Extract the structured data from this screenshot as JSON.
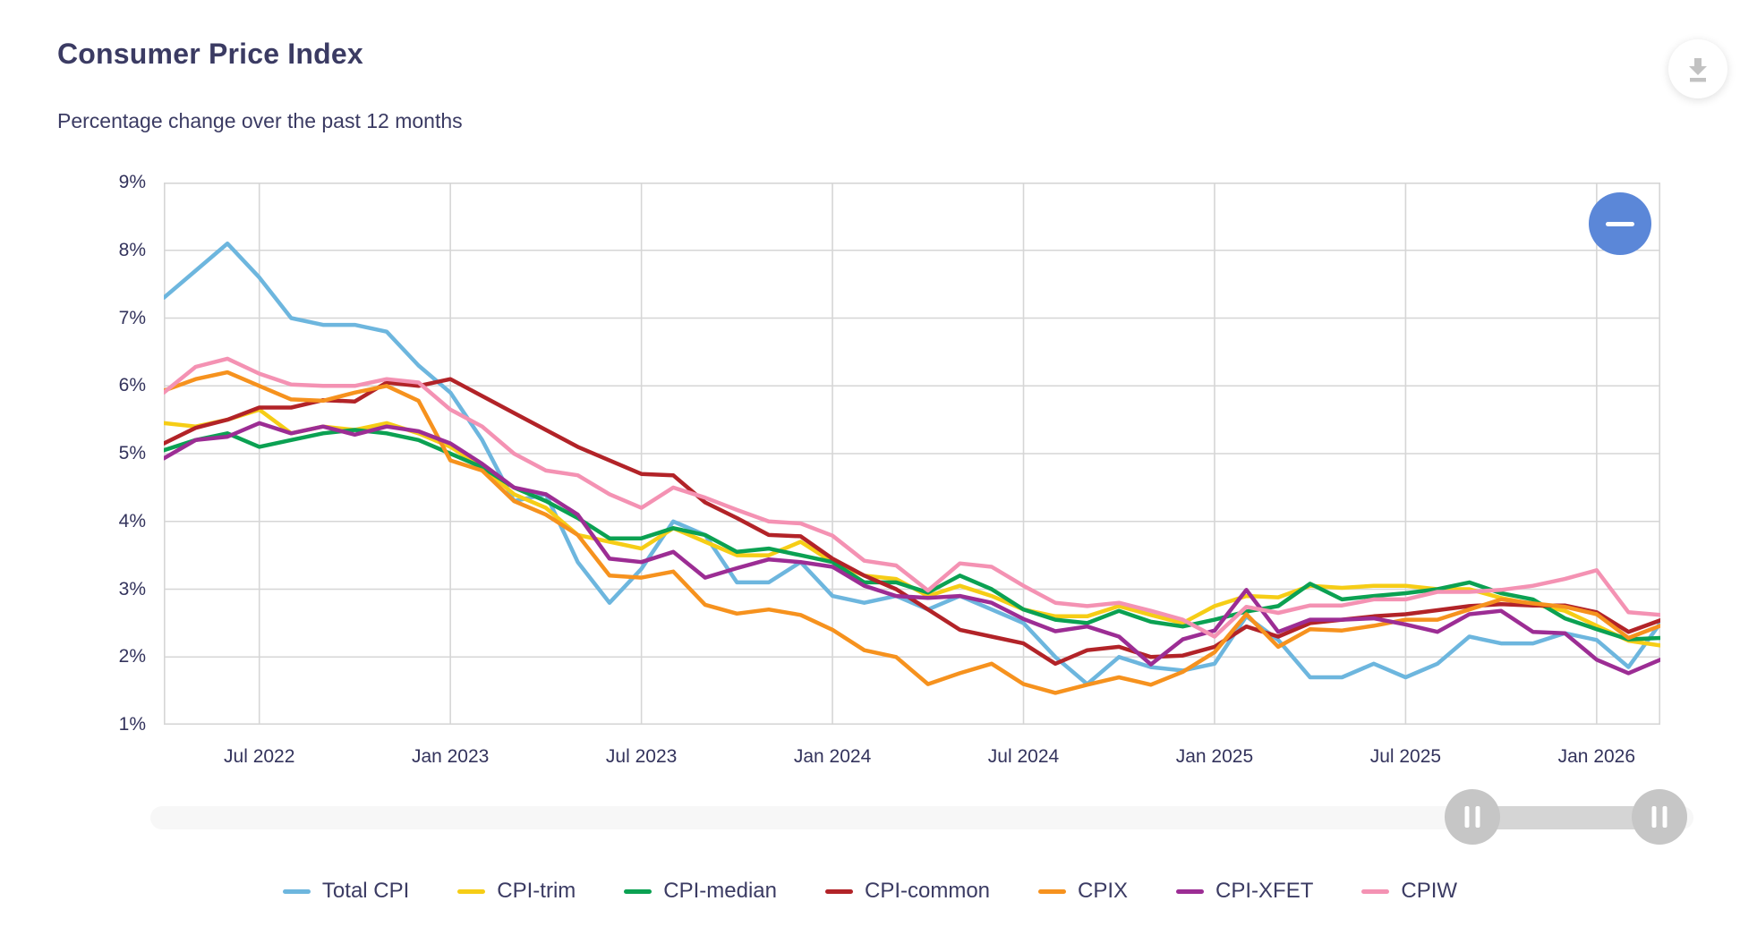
{
  "header": {
    "title": "Consumer Price Index",
    "subtitle": "Percentage change over the past 12 months"
  },
  "toolbar": {
    "download_icon": "download-icon",
    "download_icon_color": "#c2c2c2"
  },
  "controls": {
    "zoom_out_button": {
      "icon": "minus-icon",
      "color": "#5b87d8"
    },
    "range_slider": {
      "left_handle_position": 0.857,
      "right_handle_position": 0.978
    }
  },
  "chart_data": {
    "type": "line",
    "grid": true,
    "legend_position": "bottom",
    "ylim": [
      1,
      9
    ],
    "y_ticks": [
      {
        "label": "9%",
        "value": 9
      },
      {
        "label": "8%",
        "value": 8
      },
      {
        "label": "7%",
        "value": 7
      },
      {
        "label": "6%",
        "value": 6
      },
      {
        "label": "5%",
        "value": 5
      },
      {
        "label": "4%",
        "value": 4
      },
      {
        "label": "3%",
        "value": 3
      },
      {
        "label": "2%",
        "value": 2
      },
      {
        "label": "1%",
        "value": 1
      }
    ],
    "x": [
      "2022-04",
      "2022-05",
      "2022-06",
      "2022-07",
      "2022-08",
      "2022-09",
      "2022-10",
      "2022-11",
      "2022-12",
      "2023-01",
      "2023-02",
      "2023-03",
      "2023-04",
      "2023-05",
      "2023-06",
      "2023-07",
      "2023-08",
      "2023-09",
      "2023-10",
      "2023-11",
      "2023-12",
      "2024-01",
      "2024-02",
      "2024-03",
      "2024-04",
      "2024-05",
      "2024-06",
      "2024-07",
      "2024-08",
      "2024-09",
      "2024-10",
      "2024-11",
      "2024-12",
      "2025-01",
      "2025-02",
      "2025-03",
      "2025-04",
      "2025-05",
      "2025-06",
      "2025-07",
      "2025-08",
      "2025-09",
      "2025-10",
      "2025-11",
      "2025-12",
      "2026-01",
      "2026-02",
      "2026-03"
    ],
    "x_ticks": [
      {
        "label": "Jul 2022",
        "index": 3
      },
      {
        "label": "Jan 2023",
        "index": 9
      },
      {
        "label": "Jul 2023",
        "index": 15
      },
      {
        "label": "Jan 2024",
        "index": 21
      },
      {
        "label": "Jul 2024",
        "index": 27
      },
      {
        "label": "Jan 2025",
        "index": 33
      },
      {
        "label": "Jul 2025",
        "index": 39
      },
      {
        "label": "Jan 2026",
        "index": 45
      }
    ],
    "series": [
      {
        "name": "Total CPI",
        "color": "#6db6de",
        "values": [
          7.3,
          7.7,
          8.1,
          7.6,
          7.0,
          6.9,
          6.9,
          6.8,
          6.3,
          5.9,
          5.2,
          4.3,
          4.4,
          3.4,
          2.8,
          3.3,
          4.0,
          3.8,
          3.1,
          3.1,
          3.4,
          2.9,
          2.8,
          2.9,
          2.7,
          2.9,
          2.7,
          2.5,
          2.0,
          1.6,
          2.0,
          1.85,
          1.8,
          1.9,
          2.6,
          2.25,
          1.7,
          1.7,
          1.9,
          1.7,
          1.9,
          2.3,
          2.2,
          2.2,
          2.35,
          2.25,
          1.85,
          2.5
        ]
      },
      {
        "name": "CPI-trim",
        "color": "#f6cd16",
        "values": [
          5.45,
          5.4,
          5.5,
          5.65,
          5.3,
          5.4,
          5.35,
          5.45,
          5.3,
          5.1,
          4.8,
          4.4,
          4.2,
          3.8,
          3.7,
          3.6,
          3.9,
          3.7,
          3.5,
          3.5,
          3.7,
          3.4,
          3.2,
          3.15,
          2.9,
          3.05,
          2.9,
          2.7,
          2.6,
          2.6,
          2.75,
          2.62,
          2.5,
          2.75,
          2.9,
          2.88,
          3.05,
          3.02,
          3.05,
          3.05,
          3.0,
          3.0,
          2.87,
          2.78,
          2.68,
          2.46,
          2.24,
          2.17
        ]
      },
      {
        "name": "CPI-median",
        "color": "#0ba152",
        "values": [
          5.05,
          5.2,
          5.3,
          5.1,
          5.2,
          5.3,
          5.35,
          5.3,
          5.2,
          5.0,
          4.8,
          4.5,
          4.3,
          4.05,
          3.75,
          3.75,
          3.9,
          3.8,
          3.55,
          3.6,
          3.5,
          3.4,
          3.1,
          3.1,
          2.95,
          3.2,
          3.0,
          2.7,
          2.55,
          2.5,
          2.68,
          2.52,
          2.45,
          2.55,
          2.67,
          2.75,
          3.08,
          2.85,
          2.9,
          2.94,
          3.0,
          3.1,
          2.94,
          2.85,
          2.57,
          2.41,
          2.26,
          2.28
        ]
      },
      {
        "name": "CPI-common",
        "color": "#b22328",
        "values": [
          5.15,
          5.38,
          5.5,
          5.68,
          5.68,
          5.79,
          5.77,
          6.05,
          6.0,
          6.1,
          5.85,
          5.6,
          5.35,
          5.1,
          4.9,
          4.7,
          4.68,
          4.28,
          4.05,
          3.8,
          3.78,
          3.45,
          3.2,
          3.0,
          2.7,
          2.4,
          2.3,
          2.2,
          1.9,
          2.1,
          2.15,
          2.0,
          2.02,
          2.15,
          2.45,
          2.3,
          2.5,
          2.55,
          2.6,
          2.63,
          2.69,
          2.75,
          2.78,
          2.76,
          2.76,
          2.66,
          2.37,
          2.54
        ]
      },
      {
        "name": "CPIX",
        "color": "#f6921e",
        "values": [
          5.93,
          6.1,
          6.2,
          6.0,
          5.8,
          5.78,
          5.9,
          6.0,
          5.78,
          4.9,
          4.75,
          4.3,
          4.1,
          3.8,
          3.2,
          3.17,
          3.26,
          2.77,
          2.64,
          2.7,
          2.62,
          2.4,
          2.1,
          2.0,
          1.6,
          1.76,
          1.9,
          1.6,
          1.47,
          1.59,
          1.7,
          1.59,
          1.78,
          2.07,
          2.63,
          2.15,
          2.41,
          2.39,
          2.46,
          2.55,
          2.55,
          2.7,
          2.85,
          2.79,
          2.74,
          2.63,
          2.28,
          2.46
        ]
      },
      {
        "name": "CPI-XFET",
        "color": "#9c2d94",
        "values": [
          4.93,
          5.2,
          5.25,
          5.45,
          5.3,
          5.4,
          5.28,
          5.4,
          5.33,
          5.15,
          4.85,
          4.5,
          4.4,
          4.1,
          3.45,
          3.4,
          3.55,
          3.17,
          3.31,
          3.44,
          3.4,
          3.33,
          3.05,
          2.9,
          2.87,
          2.9,
          2.8,
          2.56,
          2.38,
          2.45,
          2.3,
          1.89,
          2.26,
          2.39,
          2.99,
          2.37,
          2.55,
          2.55,
          2.57,
          2.48,
          2.37,
          2.63,
          2.68,
          2.37,
          2.35,
          1.96,
          1.76,
          1.96
        ]
      },
      {
        "name": "CPIW",
        "color": "#f492b3",
        "values": [
          5.9,
          6.28,
          6.4,
          6.18,
          6.02,
          6.0,
          6.0,
          6.1,
          6.05,
          5.65,
          5.4,
          5.0,
          4.75,
          4.68,
          4.4,
          4.2,
          4.5,
          4.35,
          4.17,
          4.0,
          3.97,
          3.79,
          3.42,
          3.35,
          2.98,
          3.38,
          3.33,
          3.05,
          2.8,
          2.75,
          2.8,
          2.68,
          2.55,
          2.3,
          2.74,
          2.65,
          2.76,
          2.76,
          2.85,
          2.85,
          2.96,
          2.96,
          2.99,
          3.05,
          3.15,
          3.28,
          2.66,
          2.62
        ]
      }
    ],
    "style": {
      "grid_color": "#d6d6d6",
      "axis_text_color": "#33335c",
      "line_width": 4.5
    }
  }
}
